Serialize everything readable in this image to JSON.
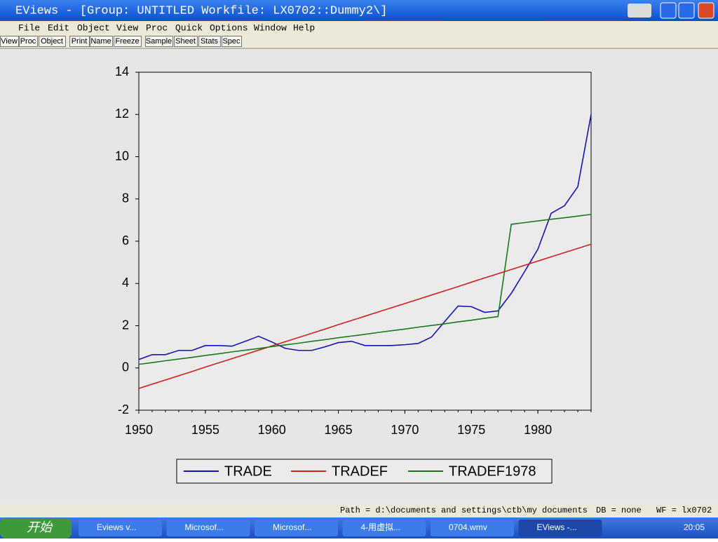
{
  "window": {
    "title": "EViews - [Group: UNTITLED    Workfile: LX0702::Dummy2\\]",
    "menu": [
      "File",
      "Edit",
      "Object",
      "View",
      "Proc",
      "Quick",
      "Options",
      "Window",
      "Help"
    ],
    "toolbar": [
      "View",
      "Proc",
      "Object",
      "Print",
      "Name",
      "Freeze",
      "Sample",
      "Sheet",
      "Stats",
      "Spec"
    ],
    "status": [
      "Path = d:\\documents and settings\\ctb\\my documents",
      "DB = none",
      "WF = lx0702"
    ]
  },
  "taskbar": {
    "start": "开始",
    "items": [
      "Eviews v...",
      "Microsof...",
      "Microsof...",
      "4-用虚拟...",
      "0704.wmv",
      "EViews -..."
    ],
    "clock": "20:05"
  },
  "chart_data": {
    "type": "line",
    "x": [
      1950,
      1951,
      1952,
      1953,
      1954,
      1955,
      1956,
      1957,
      1958,
      1959,
      1960,
      1961,
      1962,
      1963,
      1964,
      1965,
      1966,
      1967,
      1968,
      1969,
      1970,
      1971,
      1972,
      1973,
      1974,
      1975,
      1976,
      1977,
      1978,
      1979,
      1980,
      1981,
      1982,
      1983,
      1984
    ],
    "series": [
      {
        "name": "TRADE",
        "color": "#1414b4",
        "values": [
          0.4,
          0.63,
          0.63,
          0.83,
          0.83,
          1.06,
          1.06,
          1.03,
          1.26,
          1.5,
          1.23,
          0.93,
          0.83,
          0.83,
          1.0,
          1.2,
          1.26,
          1.06,
          1.06,
          1.06,
          1.1,
          1.16,
          1.46,
          2.2,
          2.93,
          2.9,
          2.63,
          2.7,
          3.53,
          4.56,
          5.62,
          7.32,
          7.68,
          8.58,
          12.0
        ]
      },
      {
        "name": "TRADEF",
        "color": "#d02020",
        "values": [
          -0.97,
          -0.77,
          -0.57,
          -0.37,
          -0.17,
          0.04,
          0.24,
          0.44,
          0.64,
          0.84,
          1.04,
          1.24,
          1.44,
          1.64,
          1.84,
          2.05,
          2.25,
          2.45,
          2.65,
          2.85,
          3.05,
          3.25,
          3.45,
          3.65,
          3.85,
          4.06,
          4.26,
          4.46,
          4.66,
          4.86,
          5.06,
          5.26,
          5.46,
          5.66,
          5.86
        ]
      },
      {
        "name": "TRADEF1978",
        "color": "#1a7a1a",
        "values": [
          0.17,
          0.25,
          0.34,
          0.42,
          0.5,
          0.59,
          0.67,
          0.76,
          0.84,
          0.92,
          1.01,
          1.09,
          1.17,
          1.26,
          1.34,
          1.43,
          1.51,
          1.59,
          1.68,
          1.76,
          1.84,
          1.93,
          2.01,
          2.09,
          2.18,
          2.26,
          2.35,
          2.43,
          6.8,
          6.88,
          6.96,
          7.04,
          7.11,
          7.19,
          7.27
        ]
      }
    ],
    "xlim": [
      1950,
      1984
    ],
    "xticks": [
      1950,
      1955,
      1960,
      1965,
      1970,
      1975,
      1980
    ],
    "ylim": [
      -2,
      14
    ],
    "yticks": [
      -2,
      0,
      2,
      4,
      6,
      8,
      10,
      12,
      14
    ],
    "legend": "bottom"
  }
}
